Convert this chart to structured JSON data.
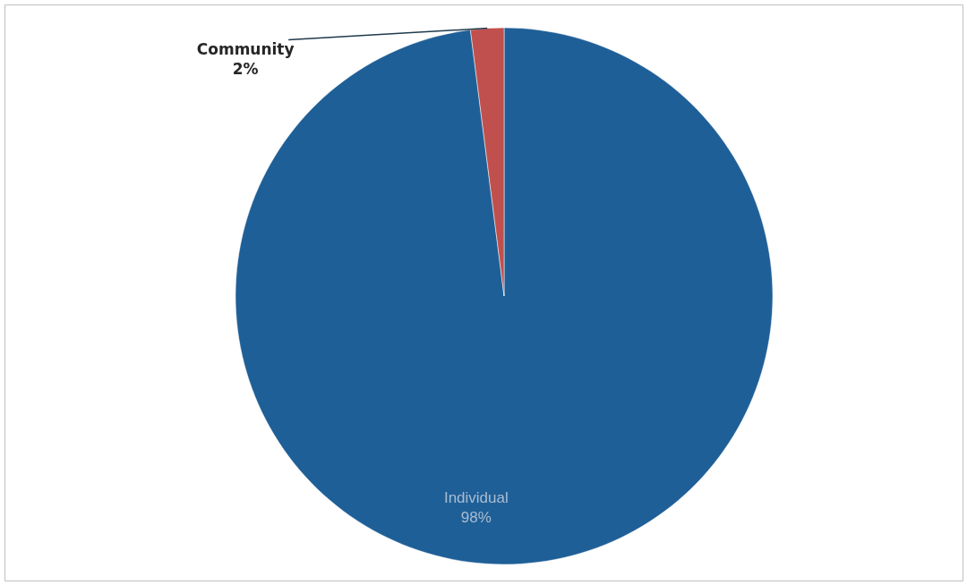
{
  "chart_data": {
    "type": "pie",
    "categories": [
      "Individual",
      "Community"
    ],
    "values": [
      98,
      2
    ],
    "colors": [
      "#1f5f97",
      "#c0504d"
    ],
    "value_labels": [
      "98%",
      "2%"
    ],
    "legend": false
  }
}
